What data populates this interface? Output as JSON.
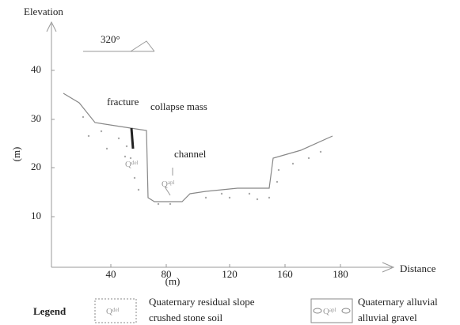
{
  "axes": {
    "y_title": "Elevation",
    "y_unit": "(m)",
    "x_title": "Distance",
    "x_unit": "(m)",
    "x_ticks": [
      "40",
      "80",
      "120",
      "160",
      "180"
    ],
    "y_ticks": [
      "10",
      "20",
      "30",
      "40"
    ]
  },
  "orientation": "320°",
  "labels": {
    "fracture": "fracture",
    "collapse": "collapse mass",
    "channel": "channel"
  },
  "symbols": {
    "residual": {
      "main": "Q",
      "sub": "del"
    },
    "alluvial": {
      "main": "Q",
      "sub": "apl"
    }
  },
  "legend": {
    "title": "Legend",
    "items": [
      {
        "symbol": {
          "main": "Q",
          "sub": "del"
        },
        "lines": [
          "Quaternary residual slope",
          "crushed stone soil"
        ]
      },
      {
        "symbol": {
          "main": "Q",
          "sub": "apl"
        },
        "lines": [
          "Quaternary alluvial",
          "alluvial gravel"
        ]
      }
    ]
  }
}
